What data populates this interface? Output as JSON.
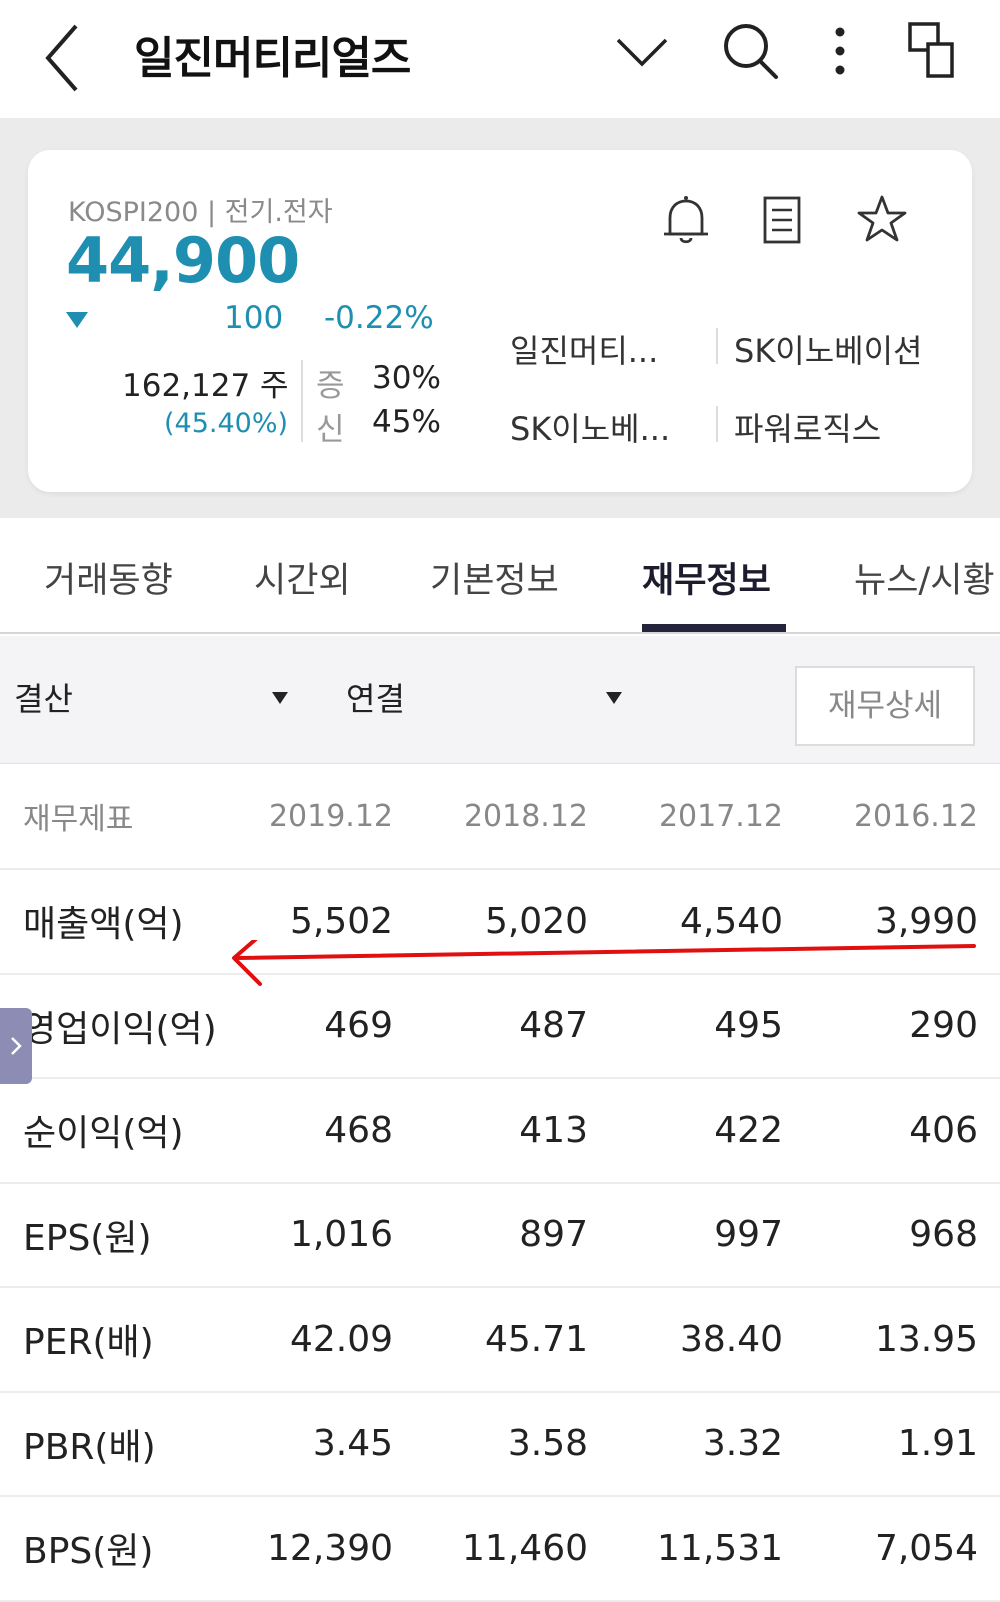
{
  "header": {
    "title": "일진머티리얼즈"
  },
  "summary": {
    "market": "KOSPI200 | 전기.전자",
    "price": "44,900",
    "change_amount": "100",
    "change_percent": "-0.22%",
    "volume": "162,127 주",
    "volume_ratio": "(45.40%)",
    "margin_label": "증",
    "margin_value": "30%",
    "credit_label": "신",
    "credit_value": "45%",
    "price_color": "#1e8fb0",
    "related": [
      "일진머티...",
      "SK이노베이션",
      "SK이노베...",
      "파워로직스"
    ]
  },
  "tabs": [
    {
      "label": "거래동향"
    },
    {
      "label": "시간외"
    },
    {
      "label": "기본정보"
    },
    {
      "label": "재무정보",
      "active": true
    },
    {
      "label": "뉴스/시황"
    }
  ],
  "filter": {
    "period": "결산",
    "scope": "연결",
    "detail_button": "재무상세"
  },
  "table": {
    "header": [
      "재무제표",
      "2019.12",
      "2018.12",
      "2017.12",
      "2016.12"
    ],
    "rows": [
      {
        "label": "매출액(억)",
        "values": [
          "5,502",
          "5,020",
          "4,540",
          "3,990"
        ]
      },
      {
        "label": "영업이익(억)",
        "values": [
          "469",
          "487",
          "495",
          "290"
        ]
      },
      {
        "label": "순이익(억)",
        "values": [
          "468",
          "413",
          "422",
          "406"
        ]
      },
      {
        "label": "EPS(원)",
        "values": [
          "1,016",
          "897",
          "997",
          "968"
        ]
      },
      {
        "label": "PER(배)",
        "values": [
          "42.09",
          "45.71",
          "38.40",
          "13.95"
        ]
      },
      {
        "label": "PBR(배)",
        "values": [
          "3.45",
          "3.58",
          "3.32",
          "1.91"
        ]
      },
      {
        "label": "BPS(원)",
        "values": [
          "12,390",
          "11,460",
          "11,531",
          "7,054"
        ]
      }
    ]
  }
}
